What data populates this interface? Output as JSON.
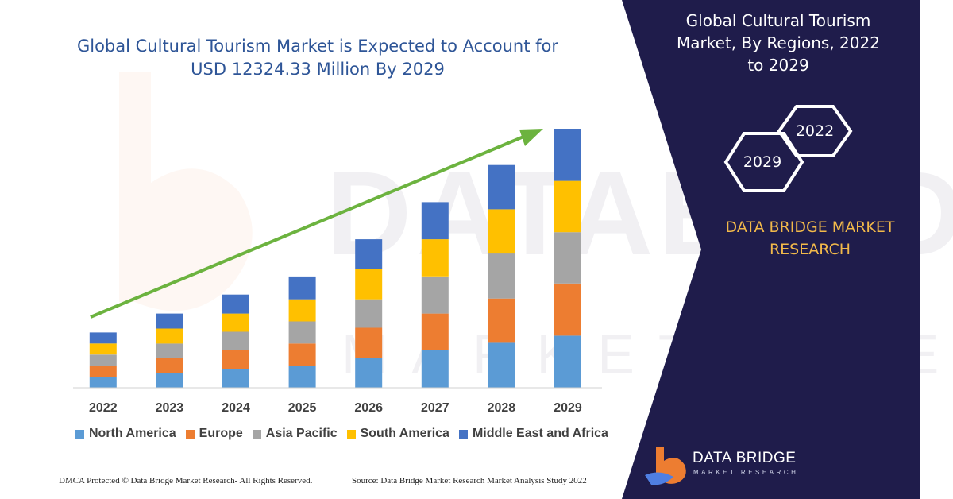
{
  "chart_title": "Global Cultural Tourism Market is Expected to Account for USD 12324.33 Million By 2029",
  "panel": {
    "title": "Global Cultural Tourism Market,  By Regions, 2022 to 2029",
    "hex_front": "2029",
    "hex_back": "2022",
    "company": "DATA BRIDGE MARKET RESEARCH",
    "logo_name": "DATA BRIDGE",
    "logo_sub": "MARKET RESEARCH"
  },
  "footer": {
    "left": "DMCA Protected © Data Bridge Market Research- All Rights Reserved.",
    "right": "Source: Data Bridge Market Research Market Analysis Study 2022"
  },
  "colors": {
    "panel_bg": "#1f1c4b",
    "arrow": "#6cb33f",
    "title": "#2e5597",
    "company": "#f2b94a"
  },
  "chart_data": {
    "type": "bar",
    "stacked": true,
    "categories": [
      "2022",
      "2023",
      "2024",
      "2025",
      "2026",
      "2027",
      "2028",
      "2029"
    ],
    "series": [
      {
        "name": "North America",
        "color": "#5b9bd5",
        "values": [
          14,
          19,
          24,
          28,
          38,
          48,
          57,
          66
        ]
      },
      {
        "name": "Europe",
        "color": "#ed7d31",
        "values": [
          14,
          19,
          24,
          28,
          38,
          46,
          56,
          66
        ]
      },
      {
        "name": "Asia Pacific",
        "color": "#a5a5a5",
        "values": [
          14,
          18,
          23,
          28,
          36,
          47,
          57,
          65
        ]
      },
      {
        "name": "South America",
        "color": "#ffc000",
        "values": [
          14,
          19,
          23,
          28,
          38,
          47,
          56,
          65
        ]
      },
      {
        "name": "Middle East and Africa",
        "color": "#4472c4",
        "values": [
          14,
          19,
          24,
          29,
          38,
          47,
          56,
          66
        ]
      }
    ],
    "ylim": [
      0,
      330
    ],
    "grid": false,
    "legend": "bottom",
    "trend_arrow": true
  }
}
